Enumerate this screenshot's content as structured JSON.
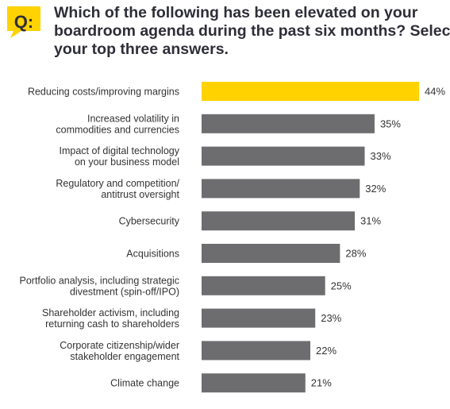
{
  "header": {
    "badge": "Q:",
    "question_lines": [
      "Which of the following has been elevated on your",
      "boardroom agenda during the past six months? Select",
      "your top three answers."
    ]
  },
  "colors": {
    "highlight": "#ffd200",
    "bar": "#6d6d70",
    "text": "#2e2e38"
  },
  "chart_data": {
    "type": "bar",
    "orientation": "horizontal",
    "categories": [
      [
        "Reducing costs/improving margins"
      ],
      [
        "Increased volatility in",
        "commodities and currencies"
      ],
      [
        "Impact of digital technology",
        "on your business model"
      ],
      [
        "Regulatory and competition/",
        "antitrust oversight"
      ],
      [
        "Cybersecurity"
      ],
      [
        "Acquisitions"
      ],
      [
        "Portfolio analysis, including strategic",
        "divestment (spin-off/IPO)"
      ],
      [
        "Shareholder activism, including",
        "returning cash to shareholders"
      ],
      [
        "Corporate citizenship/wider",
        "stakeholder engagement"
      ],
      [
        "Climate change"
      ]
    ],
    "values": [
      44,
      35,
      33,
      32,
      31,
      28,
      25,
      23,
      22,
      21
    ],
    "value_suffix": "%",
    "highlight_index": 0,
    "xlim": [
      0,
      44
    ],
    "grid": false,
    "legend": "none"
  }
}
